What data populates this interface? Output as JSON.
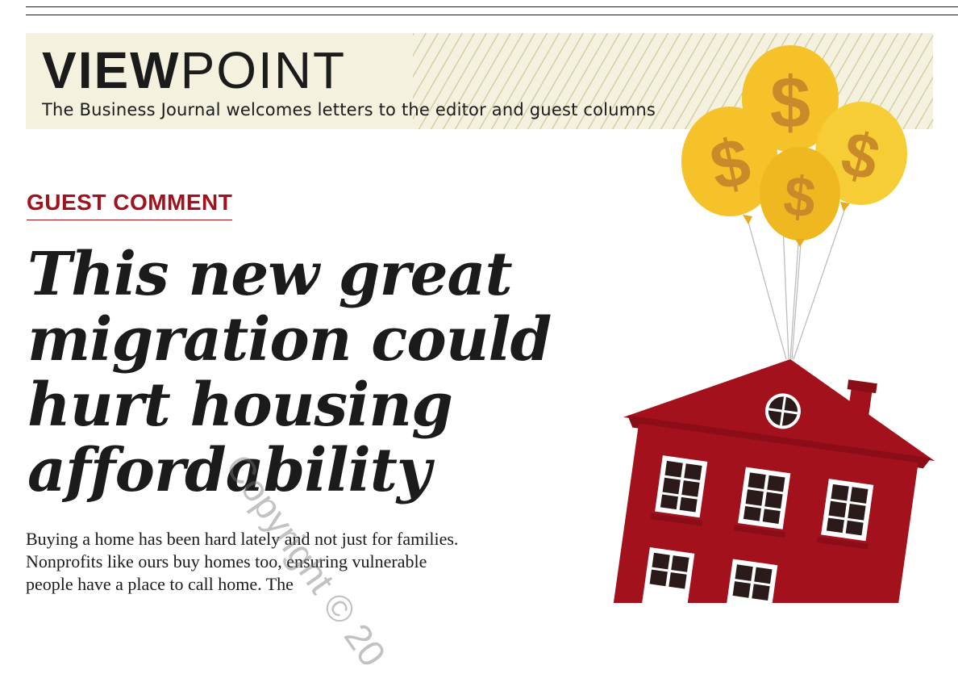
{
  "banner": {
    "title_bold": "VIEW",
    "title_light": "POINT",
    "subtitle": "The Business Journal welcomes letters to the editor and guest columns"
  },
  "section_label": "GUEST COMMENT",
  "headline": "This new great migration could hurt housing affordability",
  "body": "Buying a home has been hard lately and not just for families. Nonprofits like ours buy homes too, ensuring vulnerable people have a place to call home. The",
  "watermark": "Copyright © 20",
  "illustration": {
    "balloon_symbol": "$",
    "colors": {
      "balloon": "#f5c22a",
      "balloon_shade": "#e6ab1a",
      "dollar": "#c98a2a",
      "house": "#a3111c",
      "house_shade": "#8a0d17",
      "window_frame": "#ffffff",
      "window_pane": "#2a1a1a"
    }
  }
}
